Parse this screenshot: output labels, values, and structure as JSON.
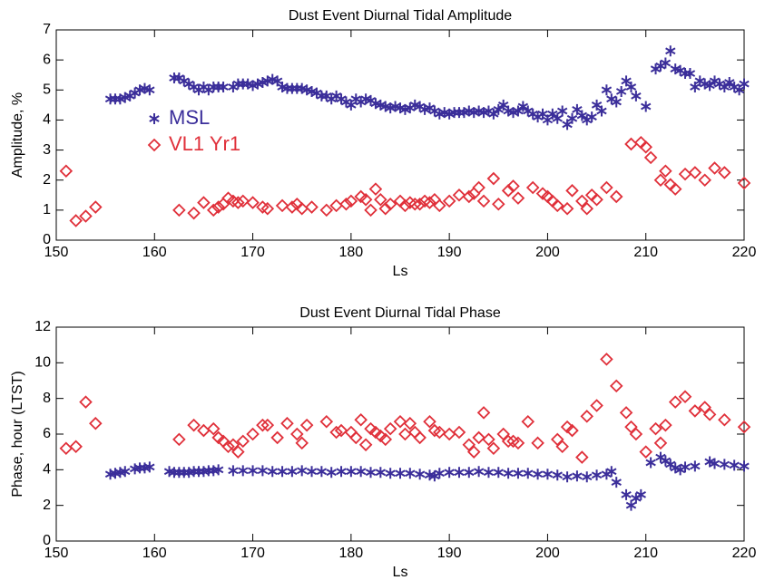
{
  "chart_data": [
    {
      "type": "scatter",
      "title": "Dust Event Diurnal Tidal Amplitude",
      "x_label": "Ls",
      "y_label": "Amplitude, %",
      "xlim": [
        150,
        220
      ],
      "xticks": [
        150,
        160,
        170,
        180,
        190,
        200,
        210,
        220
      ],
      "ylim": [
        0,
        7
      ],
      "yticks": [
        0,
        1,
        2,
        3,
        4,
        5,
        6,
        7
      ],
      "legend": "center left",
      "series": [
        {
          "name": "MSL",
          "color": "#3b2e9a",
          "marker": "asterisk",
          "x": [
            155.5,
            156,
            156.5,
            157,
            157.5,
            158,
            158.5,
            159,
            159.5,
            162,
            162.5,
            163,
            163.5,
            164,
            164.5,
            165,
            165.5,
            166,
            166.5,
            167,
            168,
            168.5,
            169,
            169.5,
            170,
            170.5,
            171,
            171.5,
            172,
            172.5,
            173,
            173.5,
            174,
            174.5,
            175,
            175.5,
            176,
            176.5,
            177,
            177.5,
            178,
            178.5,
            179,
            179.5,
            180,
            180.5,
            181,
            181.5,
            182,
            182.5,
            183,
            183.5,
            184,
            184.5,
            185,
            185.5,
            186,
            186.5,
            187,
            187.5,
            188,
            188.5,
            189,
            189.5,
            190,
            190.5,
            191,
            191.5,
            192,
            192.5,
            193,
            193.5,
            194,
            194.5,
            195,
            195.5,
            196,
            196.5,
            197,
            197.5,
            198,
            198.5,
            199,
            199.5,
            200,
            200.5,
            201,
            201.5,
            202,
            202.5,
            203,
            203.5,
            204,
            204.5,
            205,
            205.5,
            206,
            206.5,
            207,
            207.5,
            208,
            208.5,
            209,
            210,
            211,
            211.5,
            212,
            212.5,
            213,
            213.5,
            214,
            214.5,
            215,
            215.5,
            216,
            216.5,
            217,
            217.5,
            218,
            218.5,
            219,
            219.5,
            220
          ],
          "values": [
            4.7,
            4.7,
            4.7,
            4.75,
            4.8,
            4.9,
            5.0,
            5.05,
            5.0,
            5.4,
            5.4,
            5.3,
            5.2,
            5.1,
            5.0,
            5.1,
            5.0,
            5.1,
            5.1,
            5.1,
            5.1,
            5.2,
            5.2,
            5.2,
            5.15,
            5.2,
            5.25,
            5.3,
            5.35,
            5.3,
            5.1,
            5.05,
            5.05,
            5.05,
            5.05,
            5.0,
            4.95,
            4.9,
            4.8,
            4.8,
            4.7,
            4.8,
            4.7,
            4.6,
            4.5,
            4.7,
            4.6,
            4.7,
            4.65,
            4.55,
            4.5,
            4.45,
            4.4,
            4.45,
            4.4,
            4.35,
            4.4,
            4.5,
            4.45,
            4.35,
            4.4,
            4.3,
            4.2,
            4.25,
            4.2,
            4.25,
            4.25,
            4.25,
            4.3,
            4.25,
            4.3,
            4.25,
            4.3,
            4.2,
            4.35,
            4.5,
            4.3,
            4.25,
            4.3,
            4.45,
            4.3,
            4.2,
            4.1,
            4.2,
            4.0,
            4.2,
            4.05,
            4.3,
            3.85,
            4.05,
            4.35,
            4.15,
            4.0,
            4.1,
            4.5,
            4.3,
            5.0,
            4.7,
            4.6,
            4.95,
            5.3,
            5.1,
            4.8,
            4.45,
            5.7,
            5.8,
            5.9,
            6.3,
            5.7,
            5.65,
            5.55,
            5.55,
            5.1,
            5.3,
            5.2,
            5.15,
            5.3,
            5.2,
            5.1,
            5.25,
            5.1,
            5.0,
            5.2
          ]
        },
        {
          "name": "VL1 Yr1",
          "color": "#e0303a",
          "marker": "diamond",
          "x": [
            151,
            152,
            153,
            154,
            162.5,
            164,
            165,
            166,
            166.5,
            167,
            167.5,
            168,
            168.5,
            169,
            170,
            171,
            171.5,
            173,
            174,
            174.5,
            175,
            176,
            177.5,
            178.5,
            179.5,
            180,
            181,
            181.5,
            182,
            182.5,
            183,
            183.5,
            184,
            185,
            185.5,
            186,
            186.5,
            187,
            187.5,
            188,
            188.5,
            189,
            190,
            191,
            192,
            192.5,
            193,
            193.5,
            194.5,
            195,
            196,
            196.5,
            197,
            198.5,
            199.5,
            200,
            200.5,
            201,
            202,
            202.5,
            203.5,
            204,
            204.5,
            205,
            206,
            207,
            208.5,
            209.5,
            210,
            210.5,
            211.5,
            212,
            212.5,
            213,
            214,
            215,
            216,
            217,
            218,
            220
          ],
          "values": [
            2.3,
            0.65,
            0.8,
            1.1,
            1.0,
            0.9,
            1.25,
            1.0,
            1.1,
            1.2,
            1.4,
            1.3,
            1.25,
            1.3,
            1.25,
            1.1,
            1.05,
            1.15,
            1.1,
            1.2,
            1.05,
            1.1,
            1.0,
            1.15,
            1.2,
            1.3,
            1.45,
            1.35,
            1.0,
            1.7,
            1.35,
            1.05,
            1.2,
            1.3,
            1.15,
            1.25,
            1.2,
            1.2,
            1.3,
            1.25,
            1.35,
            1.15,
            1.3,
            1.5,
            1.45,
            1.55,
            1.75,
            1.3,
            2.05,
            1.2,
            1.65,
            1.8,
            1.4,
            1.75,
            1.55,
            1.45,
            1.3,
            1.15,
            1.05,
            1.65,
            1.3,
            1.05,
            1.5,
            1.35,
            1.75,
            1.45,
            3.2,
            3.25,
            3.1,
            2.75,
            2.0,
            2.3,
            1.85,
            1.7,
            2.2,
            2.25,
            2.0,
            2.4,
            2.25,
            1.9
          ]
        }
      ]
    },
    {
      "type": "scatter",
      "title": "Dust Event Diurnal Tidal Phase",
      "x_label": "Ls",
      "y_label": "Phase, hour (LTST)",
      "xlim": [
        150,
        220
      ],
      "xticks": [
        150,
        160,
        170,
        180,
        190,
        200,
        210,
        220
      ],
      "ylim": [
        0,
        12
      ],
      "yticks": [
        0,
        2,
        4,
        6,
        8,
        10,
        12
      ],
      "series": [
        {
          "color": "#3b2e9a",
          "marker": "asterisk",
          "x": [
            155.5,
            156,
            156.5,
            157,
            158,
            158.5,
            159,
            159.5,
            161.5,
            162,
            162.5,
            163,
            163.5,
            164,
            164.5,
            165,
            165.5,
            166,
            166.5,
            168,
            169,
            170,
            171,
            172,
            173,
            174,
            175,
            176,
            177,
            178,
            179,
            180,
            181,
            182,
            183,
            184,
            185,
            186,
            187,
            188,
            188.5,
            189,
            190,
            191,
            192,
            193,
            194,
            195,
            196,
            197,
            198,
            199,
            200,
            201,
            202,
            203,
            204,
            205,
            206,
            206.5,
            207,
            208,
            208.5,
            209,
            209.5,
            210.5,
            211.5,
            212,
            212.5,
            213,
            213.5,
            214,
            215,
            216.5,
            217,
            218,
            219,
            220
          ],
          "values": [
            3.75,
            3.8,
            3.85,
            3.9,
            4.05,
            4.1,
            4.1,
            4.15,
            3.9,
            3.85,
            3.85,
            3.85,
            3.85,
            3.9,
            3.9,
            3.9,
            3.95,
            3.95,
            4.0,
            3.95,
            3.95,
            3.95,
            3.95,
            3.9,
            3.9,
            3.9,
            3.95,
            3.9,
            3.9,
            3.85,
            3.9,
            3.9,
            3.9,
            3.85,
            3.85,
            3.8,
            3.8,
            3.8,
            3.75,
            3.7,
            3.65,
            3.8,
            3.85,
            3.85,
            3.85,
            3.9,
            3.85,
            3.85,
            3.8,
            3.8,
            3.8,
            3.75,
            3.75,
            3.7,
            3.6,
            3.65,
            3.6,
            3.7,
            3.75,
            3.9,
            3.3,
            2.6,
            2.0,
            2.4,
            2.6,
            4.4,
            4.7,
            4.5,
            4.3,
            4.1,
            4.0,
            4.15,
            4.2,
            4.45,
            4.35,
            4.3,
            4.25,
            4.2
          ]
        },
        {
          "color": "#e0303a",
          "marker": "diamond",
          "x": [
            151,
            152,
            153,
            154,
            162.5,
            164,
            165,
            166,
            166.5,
            167,
            167.5,
            168,
            168.5,
            169,
            170,
            171,
            171.5,
            172.5,
            173.5,
            174.5,
            175,
            175.5,
            177.5,
            178.5,
            179,
            180,
            180.5,
            181,
            181.5,
            182,
            182.5,
            183,
            183.5,
            184,
            185,
            185.5,
            186,
            186.5,
            187,
            188,
            188.5,
            189,
            190,
            191,
            192,
            192.5,
            193,
            193.5,
            194,
            194.5,
            195.5,
            196,
            196.5,
            197,
            198,
            199,
            201,
            201.5,
            202,
            202.5,
            203.5,
            204,
            205,
            206,
            207,
            208,
            208.5,
            209,
            210,
            211,
            211.5,
            212,
            213,
            214,
            215,
            216,
            216.5,
            218,
            220
          ],
          "values": [
            5.2,
            5.3,
            7.8,
            6.6,
            5.7,
            6.5,
            6.2,
            6.3,
            5.8,
            5.6,
            5.3,
            5.4,
            5.0,
            5.6,
            6.0,
            6.5,
            6.5,
            5.8,
            6.6,
            6.0,
            5.5,
            6.5,
            6.7,
            6.1,
            6.2,
            6.1,
            5.8,
            6.8,
            5.4,
            6.3,
            6.1,
            5.9,
            5.7,
            6.3,
            6.7,
            6.0,
            6.6,
            6.1,
            5.8,
            6.7,
            6.2,
            6.1,
            6.0,
            6.1,
            5.4,
            5.0,
            5.8,
            7.2,
            5.7,
            5.2,
            6.0,
            5.6,
            5.6,
            5.5,
            6.7,
            5.5,
            5.7,
            5.3,
            6.4,
            6.2,
            4.7,
            7.0,
            7.6,
            10.2,
            8.7,
            7.2,
            6.4,
            6.0,
            5.0,
            6.3,
            5.5,
            6.5,
            7.8,
            8.1,
            7.3,
            7.5,
            7.1,
            6.8,
            6.4
          ]
        }
      ]
    }
  ]
}
